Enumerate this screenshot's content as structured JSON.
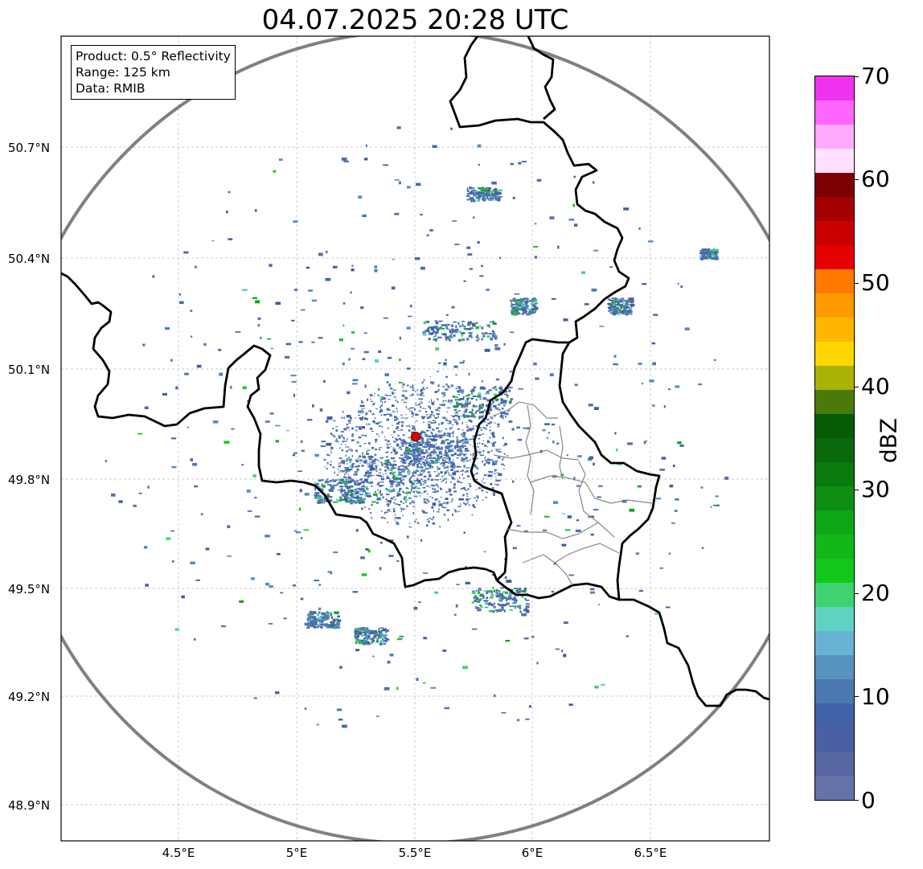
{
  "title": "04.07.2025 20:28 UTC",
  "info": {
    "product": "Product: 0.5° Reflectivity",
    "range": "Range: 125 km",
    "data": "Data: RMIB"
  },
  "axes": {
    "lat_ticks": [
      "50.7°N",
      "50.4°N",
      "50.1°N",
      "49.8°N",
      "49.5°N",
      "49.2°N",
      "48.9°N"
    ],
    "lon_ticks": [
      "4.5°E",
      "5°E",
      "5.5°E",
      "6°E",
      "6.5°E"
    ]
  },
  "radar": {
    "site_lon": 5.505,
    "site_lat": 49.915,
    "site_color": "#e00000",
    "range_ring_color": "#808080"
  },
  "colorbar": {
    "label": "dBZ",
    "ticks": [
      "0",
      "10",
      "20",
      "30",
      "40",
      "50",
      "60",
      "70"
    ],
    "colors": [
      "#6573a8",
      "#5566a0",
      "#4a5fa4",
      "#4162a6",
      "#4a79b0",
      "#5793be",
      "#66b3d6",
      "#5fd2c4",
      "#3ed36e",
      "#12c81a",
      "#12b818",
      "#0fa614",
      "#0d8e12",
      "#0a7a0e",
      "#0b680b",
      "#055c05",
      "#4a7a0a",
      "#aab205",
      "#ffd700",
      "#ffb700",
      "#ff9a00",
      "#ff7a00",
      "#e60000",
      "#c80000",
      "#a30000",
      "#7d0000",
      "#ffe0ff",
      "#ffaaff",
      "#ff66ff",
      "#ee33ee"
    ]
  }
}
